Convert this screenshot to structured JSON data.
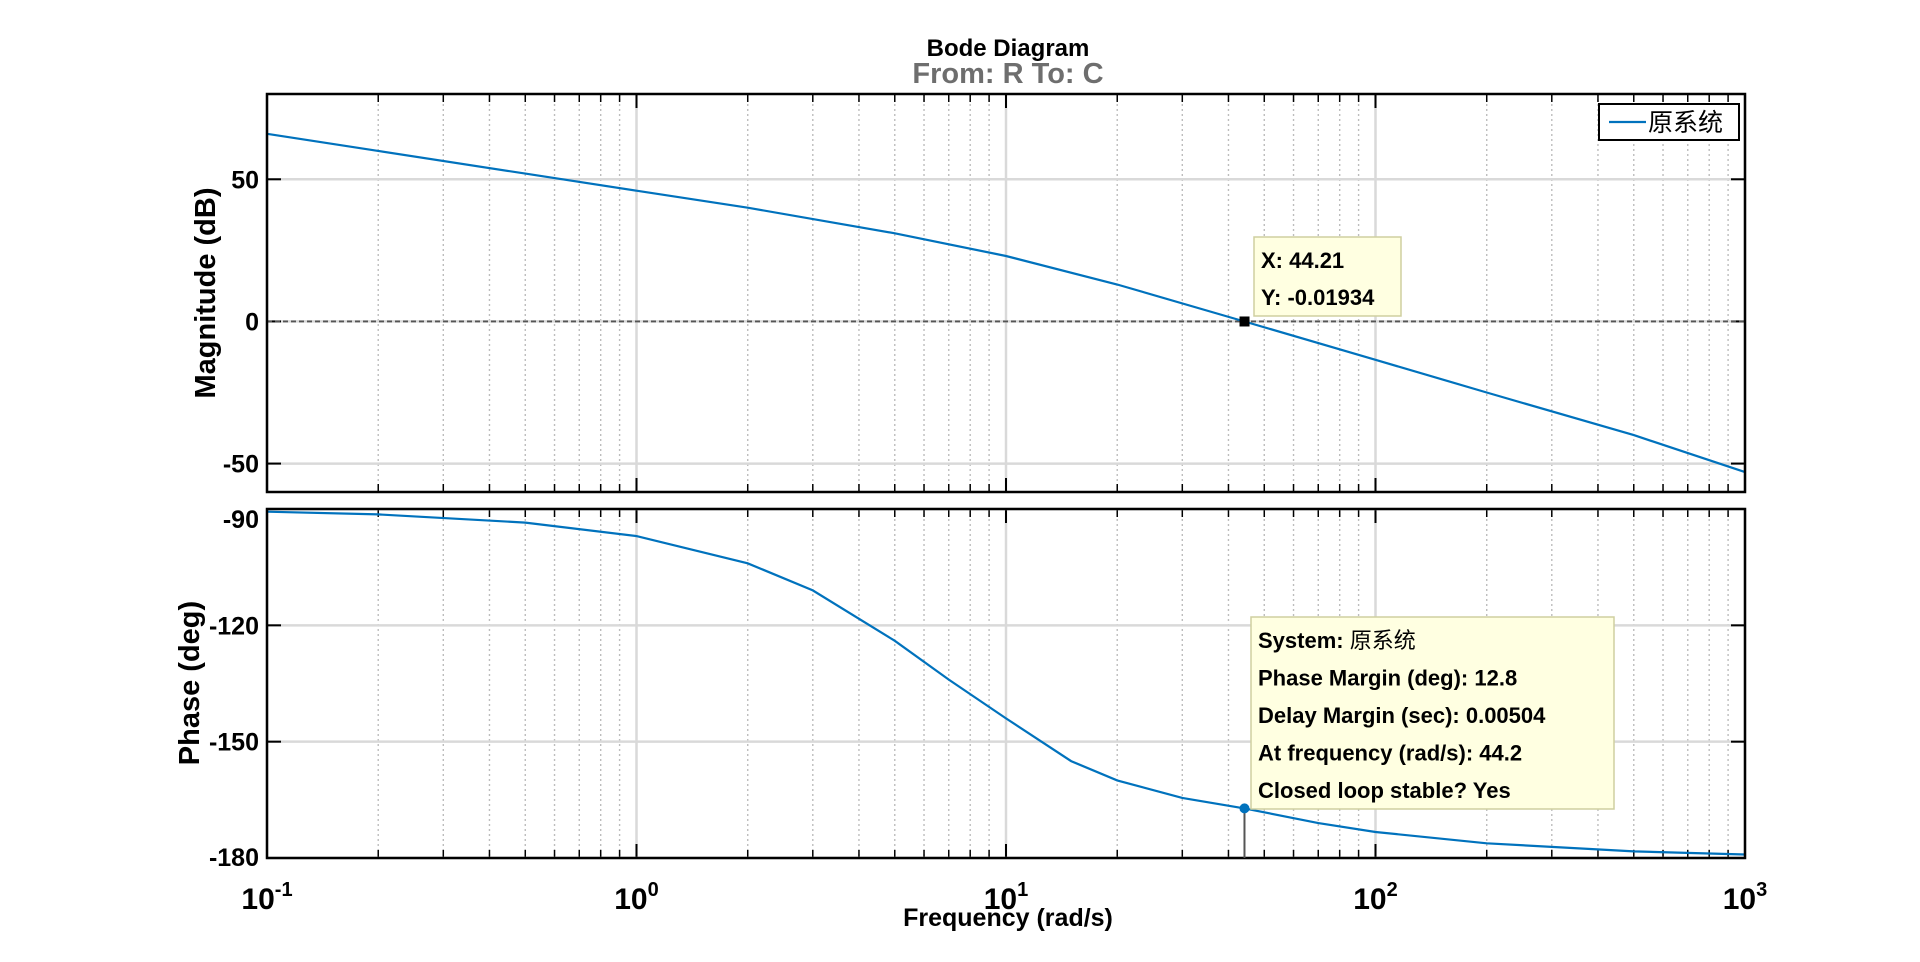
{
  "figure": {
    "title": "Bode Diagram",
    "subtitle": "From: R  To: C",
    "xlabel": "Frequency  (rad/s)",
    "colors": {
      "line": "#0072BD",
      "axis": "#000000",
      "subtitle": "#6e6e6e",
      "tooltip_bg": "#ffffe1",
      "tooltip_border": "#cfcfa0",
      "grid_major": "#d9d9d9",
      "grid_minor": "#bdbdbd",
      "ref_line": "#555555"
    }
  },
  "chart_data": [
    {
      "type": "line",
      "panel": "magnitude",
      "ylabel": "Magnitude (dB)",
      "xscale": "log",
      "xlim": [
        0.1,
        1000
      ],
      "ylim": [
        -60,
        80
      ],
      "yticks": [
        -50,
        0,
        50
      ],
      "ytick_labels": [
        "-50",
        "0",
        "50"
      ],
      "grid": true,
      "legend": {
        "placement": "top-right",
        "entries": [
          "原系统"
        ]
      },
      "series": [
        {
          "name": "原系统",
          "x": [
            0.1,
            0.2,
            0.5,
            1,
            2,
            5,
            10,
            20,
            44.21,
            100,
            200,
            500,
            1000
          ],
          "y": [
            66,
            60,
            52,
            46,
            40,
            31,
            23,
            13,
            -0.02,
            -13.5,
            -25,
            -40,
            -53
          ]
        }
      ],
      "reference_line": {
        "y": 0
      },
      "datatip": {
        "x": 44.21,
        "y": -0.01934,
        "label_x": "X: 44.21",
        "label_y": "Y: -0.01934"
      }
    },
    {
      "type": "line",
      "panel": "phase",
      "ylabel": "Phase (deg)",
      "xscale": "log",
      "xlim": [
        0.1,
        1000
      ],
      "ylim": [
        -180,
        -90
      ],
      "yticks": [
        -180,
        -150,
        -120,
        -90
      ],
      "ytick_labels": [
        "-180",
        "-150",
        "-120",
        "-90"
      ],
      "xticks": [
        0.1,
        1,
        10,
        100,
        1000
      ],
      "xtick_labels": [
        {
          "base": "10",
          "exp": "-1"
        },
        {
          "base": "10",
          "exp": "0"
        },
        {
          "base": "10",
          "exp": "1"
        },
        {
          "base": "10",
          "exp": "2"
        },
        {
          "base": "10",
          "exp": "3"
        }
      ],
      "grid": true,
      "series": [
        {
          "name": "原系统",
          "x": [
            0.1,
            0.2,
            0.5,
            1,
            2,
            3,
            5,
            7,
            10,
            15,
            20,
            30,
            44.2,
            70,
            100,
            200,
            500,
            1000
          ],
          "y": [
            -90.7,
            -91.4,
            -93.5,
            -97,
            -104,
            -111,
            -124,
            -134,
            -144,
            -155,
            -160,
            -164.5,
            -167.2,
            -171,
            -173.3,
            -176.2,
            -178.3,
            -179.1
          ]
        }
      ],
      "reference_line": {
        "y": -180
      },
      "marker": {
        "x": 44.2,
        "y": -167.2
      },
      "stability_tip": {
        "lines": [
          {
            "label": "System:",
            "value": "原系统"
          },
          {
            "label": "Phase Margin (deg):",
            "value": "12.8"
          },
          {
            "label": "Delay Margin (sec):",
            "value": "0.00504"
          },
          {
            "label": "At frequency (rad/s):",
            "value": "44.2"
          },
          {
            "label": "Closed loop stable?",
            "value": "Yes"
          }
        ]
      }
    }
  ]
}
